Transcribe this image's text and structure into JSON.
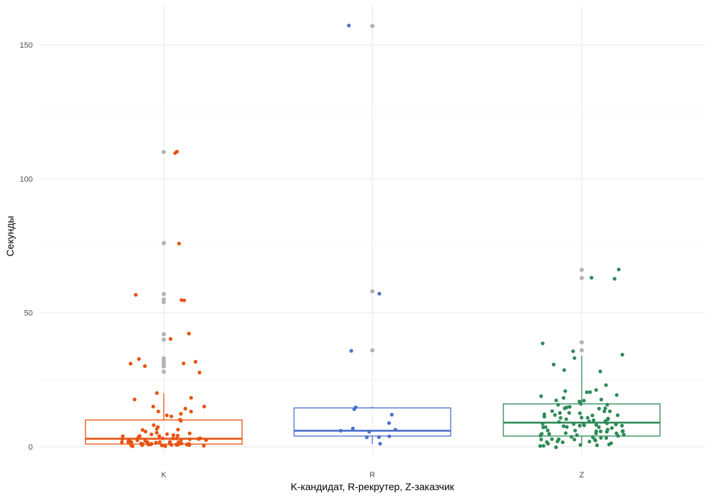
{
  "chart_data": {
    "type": "boxplot-jitter",
    "xlabel": "K-кандидат, R-рекрутер, Z-заказчик",
    "ylabel": "Секунды",
    "ylim": [
      -4,
      165
    ],
    "yticks": [
      0,
      50,
      100,
      150
    ],
    "grid": true,
    "outlier_color": "#b3b3b3",
    "categories": [
      {
        "label": "K",
        "color": "#e8520e",
        "box": {
          "min": 0,
          "q1": 1,
          "median": 3,
          "q3": 10,
          "max": 20
        },
        "outliers": [
          110,
          76,
          57,
          55,
          54,
          42,
          40,
          33,
          32,
          31,
          30,
          28
        ],
        "points": [
          110,
          110,
          76,
          57,
          55,
          54.5,
          42,
          40,
          33,
          32,
          31,
          31,
          30,
          28,
          20,
          18,
          17.5,
          15,
          15,
          14,
          13.5,
          13,
          12,
          12,
          11,
          10,
          9.5,
          8,
          7,
          7,
          6,
          6,
          5.5,
          5,
          5,
          5,
          4.5,
          4,
          4,
          4,
          3.5,
          3.5,
          3,
          3,
          3,
          3,
          2.5,
          2.5,
          2.5,
          2,
          2,
          2,
          2,
          2,
          2,
          1.5,
          1.5,
          1.5,
          1.5,
          1.5,
          1,
          1,
          1,
          1,
          1,
          1,
          1,
          1,
          1,
          1,
          1,
          0.5,
          0.5,
          0.5,
          0.5,
          0.5,
          0.5,
          0.5,
          0.5,
          3,
          2,
          1.5,
          1,
          2.5,
          4,
          3,
          2,
          5
        ]
      },
      {
        "label": "R",
        "color": "#4a6fcc",
        "box": {
          "min": 1,
          "q1": 4,
          "median": 6,
          "q3": 14.5,
          "max": 15
        },
        "outliers": [
          157,
          58,
          36
        ],
        "points": [
          157,
          57.5,
          36,
          15,
          14,
          12,
          9,
          6.5,
          6,
          6,
          5.5,
          4,
          3.5,
          3.5,
          1
        ]
      },
      {
        "label": "Z",
        "color": "#2e8b57",
        "box": {
          "min": 1,
          "q1": 4,
          "median": 9,
          "q3": 16,
          "max": 34
        },
        "outliers": [
          66,
          63,
          39,
          36
        ],
        "points": [
          66.5,
          63,
          62.5,
          38.5,
          36,
          34,
          33,
          31,
          29,
          28.5,
          23,
          21.5,
          21,
          20.5,
          20,
          19.5,
          19,
          18.5,
          18,
          17.5,
          17,
          16,
          15.5,
          15,
          14.5,
          14,
          13.5,
          13,
          13,
          12.5,
          12.5,
          12,
          12,
          11.5,
          11,
          11,
          10.5,
          10.5,
          10,
          10,
          9.5,
          9.5,
          9,
          9,
          9,
          8.5,
          8.5,
          8,
          8,
          8,
          7.5,
          7.5,
          7,
          7,
          7,
          6.5,
          6.5,
          6,
          6,
          6,
          5.5,
          5.5,
          5,
          5,
          5,
          4.5,
          4.5,
          4,
          4,
          4,
          3.5,
          3.5,
          3,
          3,
          3,
          2.5,
          2.5,
          2,
          2,
          1.5,
          1.5,
          1,
          1,
          1,
          0.5,
          0.5,
          0,
          0,
          1,
          2,
          3,
          4,
          5,
          6,
          7,
          8,
          9,
          10,
          11,
          12,
          13,
          14,
          15,
          16,
          17
        ]
      }
    ]
  }
}
